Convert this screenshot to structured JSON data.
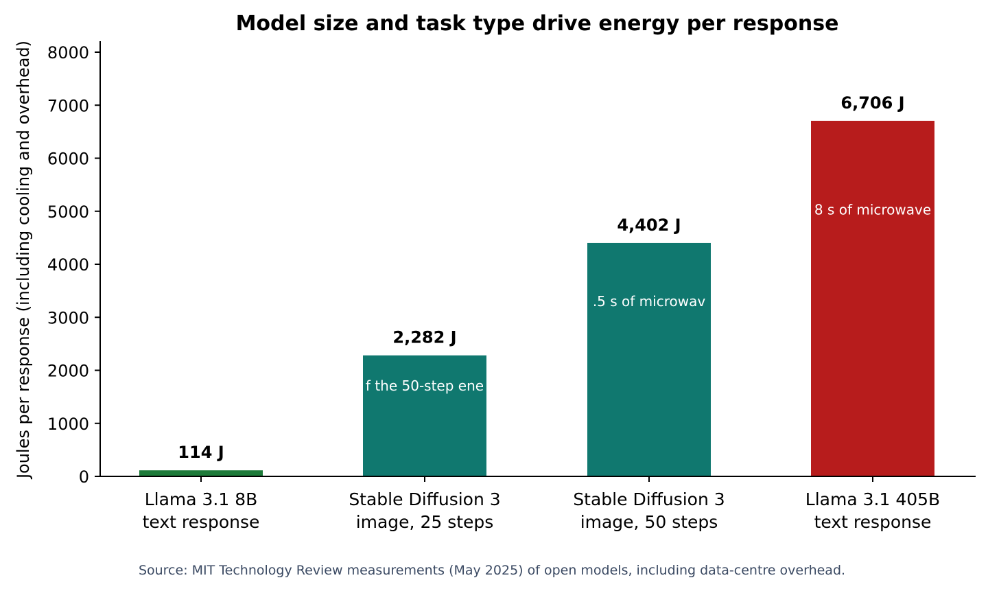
{
  "chart_data": {
    "type": "bar",
    "title": "Model size and task type drive energy per response",
    "xlabel": "",
    "ylabel": "Joules per response (including cooling and overhead)",
    "ylim": [
      0,
      8200
    ],
    "yticks": [
      0,
      1000,
      2000,
      3000,
      4000,
      5000,
      6000,
      7000,
      8000
    ],
    "ytick_labels": [
      "0",
      "1000",
      "2000",
      "3000",
      "4000",
      "5000",
      "6000",
      "7000",
      "8000"
    ],
    "categories": [
      [
        "Llama 3.1 8B",
        "text response"
      ],
      [
        "Stable Diffusion 3",
        "image, 25 steps"
      ],
      [
        "Stable Diffusion 3",
        "image, 50 steps"
      ],
      [
        "Llama 3.1 405B",
        "text response"
      ]
    ],
    "values": [
      114,
      2282,
      4402,
      6706
    ],
    "value_labels": [
      "114 J",
      "2,282 J",
      "4,402 J",
      "6,706 J"
    ],
    "inner_labels": [
      "",
      "f the 50-step ene",
      ".5 s of microwav",
      "8 s of microwave"
    ],
    "colors": [
      "#1e7b3a",
      "#10786f",
      "#10786f",
      "#b71c1c"
    ],
    "grid": false,
    "legend": "none"
  },
  "footer": {
    "source": "Source: MIT Technology Review measurements (May 2025) of open models, including data-centre overhead."
  }
}
